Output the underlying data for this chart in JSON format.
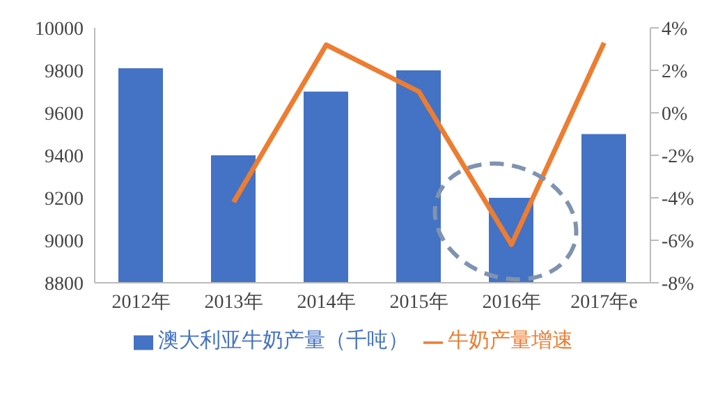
{
  "chart_data": {
    "type": "bar",
    "categories": [
      "2012年",
      "2013年",
      "2014年",
      "2015年",
      "2016年",
      "2017年e"
    ],
    "series": [
      {
        "name": "澳大利亚牛奶产量（千吨）",
        "color": "#4472c4",
        "values": [
          9810,
          9400,
          9700,
          9800,
          9200,
          9500
        ]
      },
      {
        "name": "牛奶产量增速",
        "type": "line",
        "axis": "y2",
        "color": "#ed7d31",
        "values": [
          null,
          -4.2,
          3.2,
          1.0,
          -6.2,
          3.3
        ]
      }
    ],
    "ylim": [
      8800,
      10000
    ],
    "yticks": [
      8800,
      9000,
      9200,
      9400,
      9600,
      9800,
      10000
    ],
    "y2lim": [
      -8,
      4
    ],
    "y2ticks": [
      {
        "value": -8,
        "label": "-8%"
      },
      {
        "value": -6,
        "label": "-6%"
      },
      {
        "value": -4,
        "label": "-4%"
      },
      {
        "value": -2,
        "label": "-2%"
      },
      {
        "value": 0,
        "label": "0%"
      },
      {
        "value": 2,
        "label": "2%"
      },
      {
        "value": 4,
        "label": "4%"
      }
    ],
    "legend": "bottom",
    "marker": "none",
    "grid": false
  }
}
